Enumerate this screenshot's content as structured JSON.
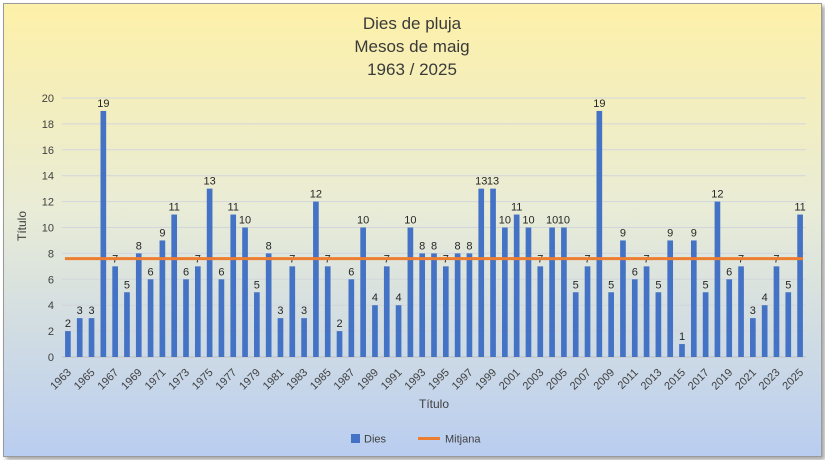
{
  "chart_data": {
    "type": "bar",
    "title": [
      "Dies de pluja",
      "Mesos de maig",
      "1963 / 2025"
    ],
    "xlabel": "Títulо",
    "ylabel": "Título",
    "ylim": [
      0,
      20
    ],
    "yticks": [
      0,
      2,
      4,
      6,
      8,
      10,
      12,
      14,
      16,
      18,
      20
    ],
    "grid": true,
    "legend_position": "bottom",
    "categories": [
      "1963",
      "1964",
      "1965",
      "1966",
      "1967",
      "1968",
      "1969",
      "1970",
      "1971",
      "1972",
      "1973",
      "1974",
      "1975",
      "1976",
      "1977",
      "1978",
      "1979",
      "1980",
      "1981",
      "1982",
      "1983",
      "1984",
      "1985",
      "1986",
      "1987",
      "1988",
      "1989",
      "1990",
      "1991",
      "1992",
      "1993",
      "1994",
      "1995",
      "1996",
      "1997",
      "1998",
      "1999",
      "2000",
      "2001",
      "2002",
      "2003",
      "2004",
      "2005",
      "2006",
      "2007",
      "2008",
      "2009",
      "2010",
      "2011",
      "2012",
      "2013",
      "2014",
      "2015",
      "2016",
      "2017",
      "2018",
      "2019",
      "2020",
      "2021",
      "2022",
      "2023",
      "2024",
      "2025"
    ],
    "series": [
      {
        "name": "Dies",
        "type": "bar",
        "color": "#4472C4",
        "values": [
          2,
          3,
          3,
          19,
          7,
          5,
          8,
          6,
          9,
          11,
          6,
          7,
          13,
          6,
          11,
          10,
          5,
          8,
          3,
          7,
          3,
          12,
          7,
          2,
          6,
          10,
          4,
          7,
          4,
          10,
          8,
          8,
          7,
          8,
          8,
          13,
          13,
          10,
          11,
          10,
          7,
          10,
          10,
          5,
          7,
          19,
          5,
          9,
          6,
          7,
          5,
          9,
          1,
          9,
          5,
          12,
          6,
          7,
          3,
          4,
          7,
          5,
          11
        ]
      },
      {
        "name": "Mitjana",
        "type": "line",
        "color": "#ED7D31",
        "value": 7.6
      }
    ]
  }
}
